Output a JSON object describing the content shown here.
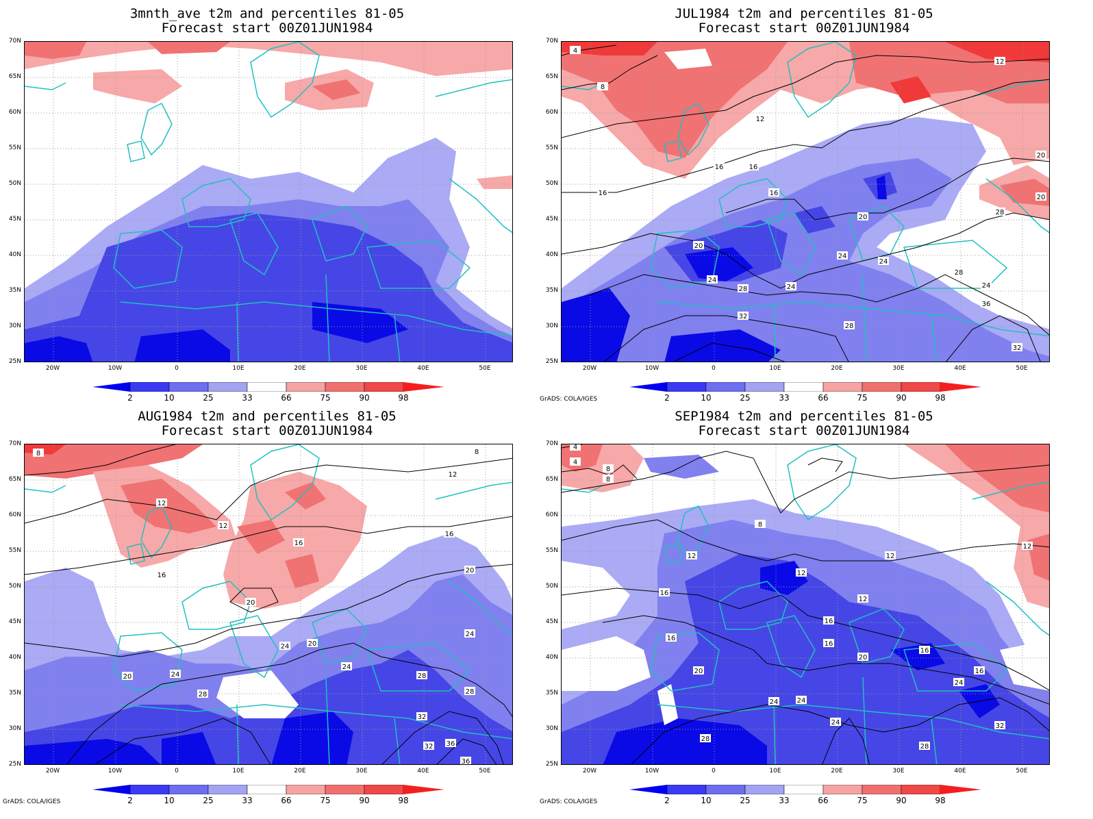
{
  "panels": [
    {
      "id": "p1",
      "title1": "3mnth_ave t2m and percentiles 81-05",
      "title2": "Forecast start 00Z01JUN1984",
      "credit": ""
    },
    {
      "id": "p2",
      "title1": "JUL1984 t2m and percentiles 81-05",
      "title2": "Forecast start 00Z01JUN1984",
      "credit": "GrADS: COLA/IGES"
    },
    {
      "id": "p3",
      "title1": "AUG1984 t2m and percentiles 81-05",
      "title2": "Forecast start 00Z01JUN1984",
      "credit": "GrADS: COLA/IGES"
    },
    {
      "id": "p4",
      "title1": "SEP1984 t2m and percentiles 81-05",
      "title2": "Forecast start 00Z01JUN1984",
      "credit": "GrADS: COLA/IGES"
    }
  ],
  "lat_labels": [
    "70N",
    "65N",
    "60N",
    "55N",
    "50N",
    "45N",
    "40N",
    "35N",
    "30N",
    "25N"
  ],
  "lon_labels": [
    "20W",
    "10W",
    "0",
    "10E",
    "20E",
    "30E",
    "40E",
    "50E"
  ],
  "colorbar": {
    "labels": [
      "2",
      "10",
      "25",
      "33",
      "66",
      "75",
      "90",
      "98"
    ],
    "colors": [
      "#0000f0",
      "#3a3af5",
      "#6e6ef0",
      "#a3a3f2",
      "#ffffff",
      "#f5a3a3",
      "#f07070",
      "#f04848",
      "#f51e1e"
    ]
  },
  "colors": {
    "coast": "#20c0c0",
    "contour": "#000000",
    "blue_dark": "#0a0ae6",
    "blue_mid": "#4646e6",
    "blue_light": "#8080ef",
    "blue_pale": "#aaaaf5",
    "red_pale": "#f7a8a8",
    "red_mid": "#f07272",
    "red_dark": "#f03a3a"
  },
  "contour_labels": {
    "p2": [
      "4",
      "8",
      "12",
      "12",
      "16",
      "16",
      "16",
      "16",
      "20",
      "20",
      "20",
      "24",
      "24",
      "24",
      "24",
      "28",
      "28",
      "28",
      "32",
      "36",
      "20",
      "24",
      "28",
      "32"
    ],
    "p3": [
      "8",
      "8",
      "12",
      "12",
      "12",
      "16",
      "16",
      "16",
      "20",
      "20",
      "20",
      "24",
      "24",
      "24",
      "28",
      "28",
      "32",
      "32",
      "36",
      "36",
      "20",
      "24",
      "28"
    ],
    "p4": [
      "4",
      "4",
      "8",
      "8",
      "8",
      "12",
      "12",
      "12",
      "12",
      "12",
      "16",
      "16",
      "16",
      "16",
      "16",
      "16",
      "20",
      "20",
      "24",
      "24",
      "24",
      "24",
      "28",
      "28",
      "32"
    ]
  }
}
